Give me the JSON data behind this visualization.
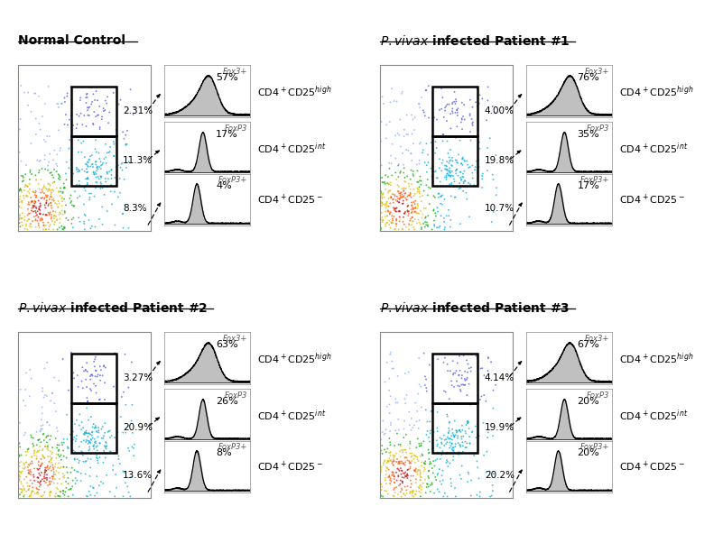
{
  "panels": [
    {
      "title_plain": "Normal Control",
      "title_has_pvivax": false,
      "pct_high": "2.31%",
      "pct_int": "11.3%",
      "pct_neg": "8.3%",
      "hist_pcts": [
        "57%",
        "17%",
        "4%"
      ],
      "hist_labels": [
        "Fox3+",
        "FoxP3",
        "FoxP3+"
      ],
      "col": 0,
      "row": 1,
      "scatter_seed": 42
    },
    {
      "title_plain": "infected Patient #1",
      "title_has_pvivax": true,
      "pct_high": "4.00%",
      "pct_int": "19.8%",
      "pct_neg": "10.7%",
      "hist_pcts": [
        "76%",
        "35%",
        "17%"
      ],
      "hist_labels": [
        "Fox3+",
        "FoxP3",
        "FoxP3+"
      ],
      "col": 1,
      "row": 1,
      "scatter_seed": 77
    },
    {
      "title_plain": "infected Patient #2",
      "title_has_pvivax": true,
      "pct_high": "3.27%",
      "pct_int": "20.9%",
      "pct_neg": "13.6%",
      "hist_pcts": [
        "63%",
        "26%",
        "8%"
      ],
      "hist_labels": [
        "Fox3+",
        "FoxP3",
        "FoxP3+"
      ],
      "col": 0,
      "row": 0,
      "scatter_seed": 123
    },
    {
      "title_plain": "infected Patient #3",
      "title_has_pvivax": true,
      "pct_high": "4.14%",
      "pct_int": "19.9%",
      "pct_neg": "20.2%",
      "hist_pcts": [
        "67%",
        "20%",
        "20%"
      ],
      "hist_labels": [
        "Fox3+",
        "FoxP3",
        "FoxP3+"
      ],
      "col": 1,
      "row": 0,
      "scatter_seed": 200
    }
  ],
  "font_size_title": 10,
  "font_size_pct": 7.5,
  "font_size_hist_pct": 8,
  "font_size_cd_label": 8,
  "font_size_hist_label": 6
}
